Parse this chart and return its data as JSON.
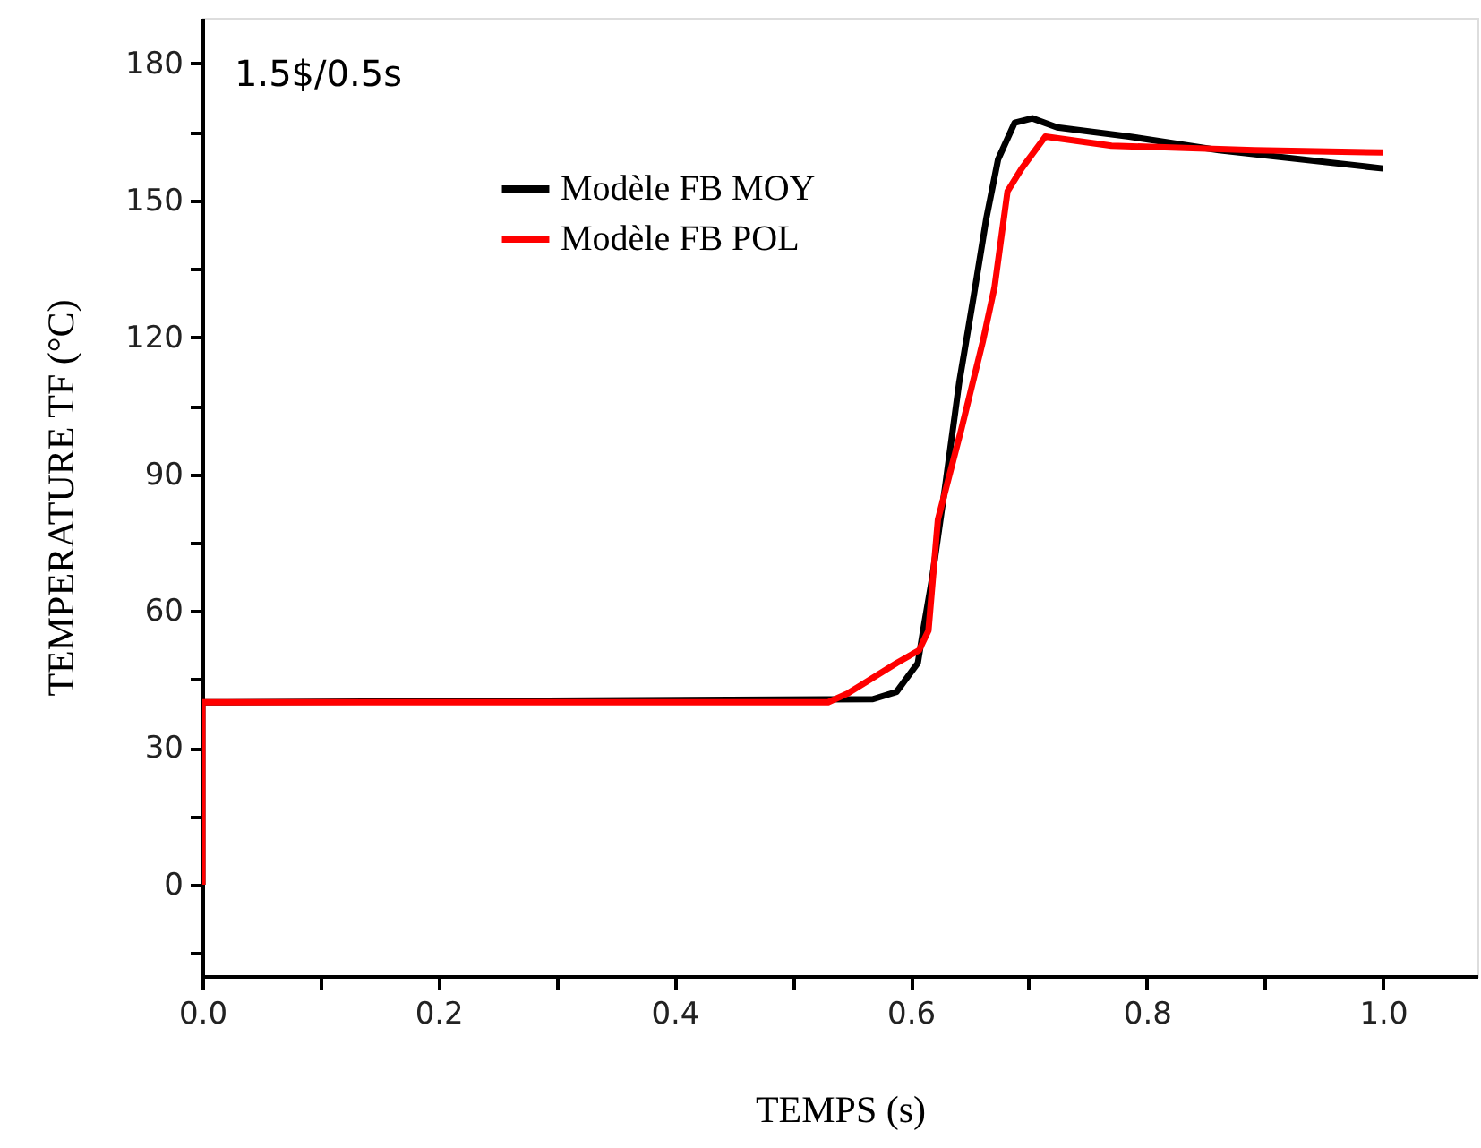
{
  "chart_data": {
    "type": "line",
    "xlabel": "TEMPS   (s)",
    "ylabel": "TEMPERATURE   TF (°C)",
    "annotations": [
      "1.5$/0.5s"
    ],
    "xlim": [
      0,
      1.08
    ],
    "ylim": [
      -20,
      190
    ],
    "xticks": [
      {
        "value": 0,
        "label": "0.0"
      },
      {
        "value": 0.1,
        "label": null
      },
      {
        "value": 0.2,
        "label": "0.2"
      },
      {
        "value": 0.3,
        "label": null
      },
      {
        "value": 0.4,
        "label": "0.4"
      },
      {
        "value": 0.5,
        "label": null
      },
      {
        "value": 0.6,
        "label": "0.6"
      },
      {
        "value": 0.7,
        "label": null
      },
      {
        "value": 0.8,
        "label": "0.8"
      },
      {
        "value": 0.9,
        "label": null
      },
      {
        "value": 1.0,
        "label": "1.0"
      }
    ],
    "yticks": [
      {
        "value": -15,
        "label": null
      },
      0,
      {
        "value": 15,
        "label": null
      },
      30,
      {
        "value": 45,
        "label": null
      },
      60,
      {
        "value": 75,
        "label": null
      },
      90,
      {
        "value": 105,
        "label": null
      },
      120,
      {
        "value": 135,
        "label": null
      },
      150,
      {
        "value": 165,
        "label": null
      },
      180
    ],
    "grid": false,
    "legend": "top",
    "line_style": "solid",
    "marker": "none",
    "series": [
      {
        "name": "Modèle FB MOY",
        "color": "#000000",
        "x": [
          0,
          0,
          0.568,
          0.588,
          0.606,
          0.611,
          0.618,
          0.629,
          0.641,
          0.653,
          0.664,
          0.674,
          0.688,
          0.703,
          0.724,
          0.785,
          0.861,
          1.0
        ],
        "values": [
          0,
          40,
          40.7,
          42.3,
          48.6,
          56.5,
          67,
          87,
          110,
          128.5,
          146,
          159,
          167,
          168,
          166,
          164,
          161,
          157
        ]
      },
      {
        "name": "Modèle FB POL",
        "color": "#ff0000",
        "x": [
          0,
          0,
          0.2,
          0.4,
          0.53,
          0.547,
          0.588,
          0.607,
          0.615,
          0.623,
          0.643,
          0.661,
          0.671,
          0.682,
          0.694,
          0.714,
          0.77,
          0.891,
          1.0
        ],
        "values": [
          0,
          40,
          40,
          40,
          40,
          42,
          48.6,
          51.4,
          55.7,
          80,
          100,
          119,
          131,
          152,
          157,
          164,
          162,
          161,
          160.5
        ]
      }
    ]
  }
}
